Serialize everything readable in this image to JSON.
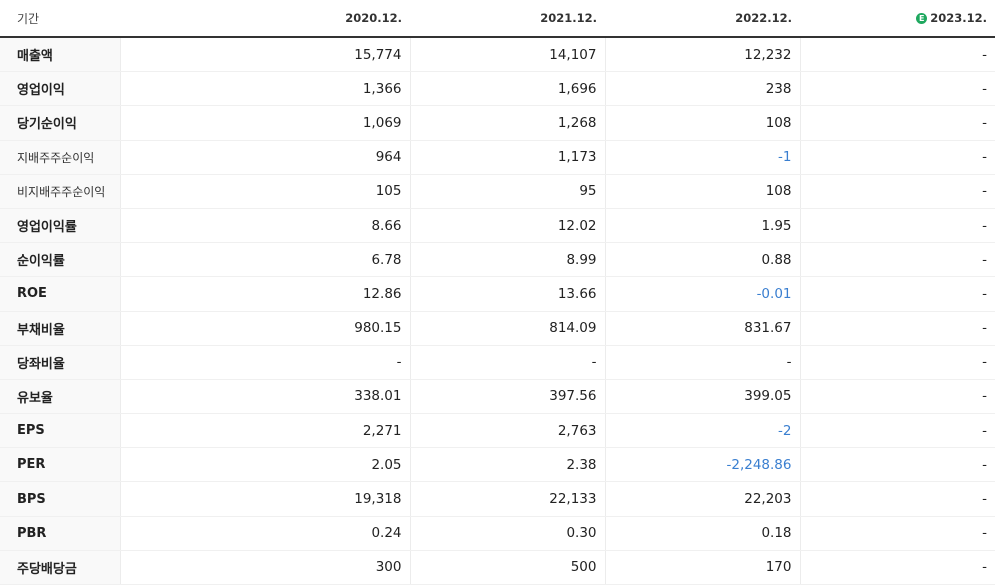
{
  "header": {
    "label": "기간",
    "periods": [
      "2020.12.",
      "2021.12.",
      "2022.12.",
      "2023.12."
    ],
    "estimate_icon": "E"
  },
  "rows": [
    {
      "label": "매출액",
      "values": [
        "15,774",
        "14,107",
        "12,232",
        "-"
      ]
    },
    {
      "label": "영업이익",
      "values": [
        "1,366",
        "1,696",
        "238",
        "-"
      ]
    },
    {
      "label": "당기순이익",
      "values": [
        "1,069",
        "1,268",
        "108",
        "-"
      ]
    },
    {
      "label": "지배주주순이익",
      "values": [
        "964",
        "1,173",
        "-1",
        "-"
      ]
    },
    {
      "label": "비지배주주순이익",
      "values": [
        "105",
        "95",
        "108",
        "-"
      ]
    },
    {
      "label": "영업이익률",
      "values": [
        "8.66",
        "12.02",
        "1.95",
        "-"
      ]
    },
    {
      "label": "순이익률",
      "values": [
        "6.78",
        "8.99",
        "0.88",
        "-"
      ]
    },
    {
      "label": "ROE",
      "values": [
        "12.86",
        "13.66",
        "-0.01",
        "-"
      ]
    },
    {
      "label": "부채비율",
      "values": [
        "980.15",
        "814.09",
        "831.67",
        "-"
      ]
    },
    {
      "label": "당좌비율",
      "values": [
        "-",
        "-",
        "-",
        "-"
      ]
    },
    {
      "label": "유보율",
      "values": [
        "338.01",
        "397.56",
        "399.05",
        "-"
      ]
    },
    {
      "label": "EPS",
      "values": [
        "2,271",
        "2,763",
        "-2",
        "-"
      ]
    },
    {
      "label": "PER",
      "values": [
        "2.05",
        "2.38",
        "-2,248.86",
        "-"
      ]
    },
    {
      "label": "BPS",
      "values": [
        "19,318",
        "22,133",
        "22,203",
        "-"
      ]
    },
    {
      "label": "PBR",
      "values": [
        "0.24",
        "0.30",
        "0.18",
        "-"
      ]
    },
    {
      "label": "주당배당금",
      "values": [
        "300",
        "500",
        "170",
        "-"
      ]
    }
  ],
  "colors": {
    "negative": "#3a7fd0",
    "estimate_badge": "#1fa85f"
  }
}
